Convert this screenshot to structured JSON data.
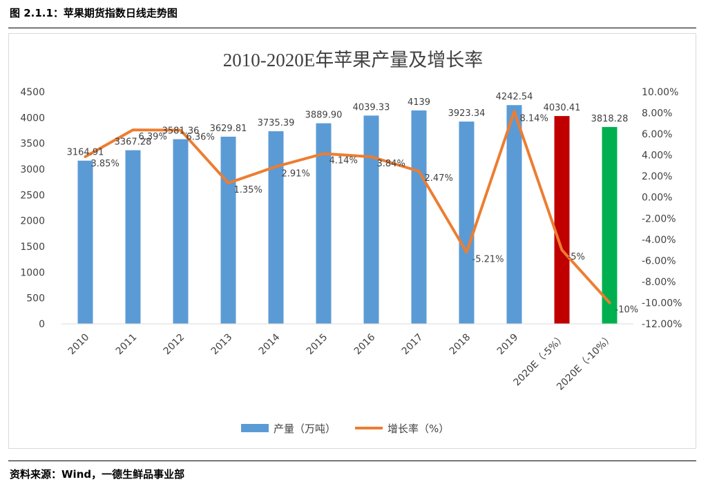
{
  "figure": {
    "title": "图 2.1.1：苹果期货指数日线走势图",
    "source": "资料来源：Wind，一德生鲜品事业部"
  },
  "chart_data": {
    "type": "bar+line",
    "title": "2010-2020E年苹果产量及增长率",
    "categories": [
      "2010",
      "2011",
      "2012",
      "2013",
      "2014",
      "2015",
      "2016",
      "2017",
      "2018",
      "2019",
      "2020E（-5%）",
      "2020E（-10%）"
    ],
    "series": [
      {
        "name": "产量（万吨）",
        "kind": "bar",
        "axis": "left",
        "values": [
          3164.91,
          3367.28,
          3581.36,
          3629.81,
          3735.39,
          3889.9,
          4039.33,
          4139,
          3923.34,
          4242.54,
          4030.41,
          3818.28
        ],
        "labels": [
          "3164.91",
          "3367.28",
          "3581.36",
          "3629.81",
          "3735.39",
          "3889.90",
          "4039.33",
          "4139",
          "3923.34",
          "4242.54",
          "4030.41",
          "3818.28"
        ],
        "colors": [
          "#5b9bd5",
          "#5b9bd5",
          "#5b9bd5",
          "#5b9bd5",
          "#5b9bd5",
          "#5b9bd5",
          "#5b9bd5",
          "#5b9bd5",
          "#5b9bd5",
          "#5b9bd5",
          "#c00000",
          "#00b050"
        ]
      },
      {
        "name": "增长率（%）",
        "kind": "line",
        "axis": "right",
        "color": "#ed7d31",
        "values": [
          3.85,
          6.39,
          6.36,
          1.35,
          2.91,
          4.14,
          3.84,
          2.47,
          -5.21,
          8.14,
          -5,
          -10
        ],
        "labels": [
          "3.85%",
          "6.39%",
          "6.36%",
          "1.35%",
          "2.91%",
          "4.14%",
          "3.84%",
          "2.47%",
          "-5.21%",
          "8.14%",
          "-5%",
          "-10%"
        ]
      }
    ],
    "y_left": {
      "range": [
        0,
        4500
      ],
      "ticks": [
        0,
        500,
        1000,
        1500,
        2000,
        2500,
        3000,
        3500,
        4000,
        4500
      ],
      "tick_labels": [
        "0",
        "500",
        "1000",
        "1500",
        "2000",
        "2500",
        "3000",
        "3500",
        "4000",
        "4500"
      ]
    },
    "y_right": {
      "range": [
        -12,
        10
      ],
      "ticks": [
        -12,
        -10,
        -8,
        -6,
        -4,
        -2,
        0,
        2,
        4,
        6,
        8,
        10
      ],
      "tick_labels": [
        "-12.00%",
        "-10.00%",
        "-8.00%",
        "-6.00%",
        "-4.00%",
        "-2.00%",
        "0.00%",
        "2.00%",
        "4.00%",
        "6.00%",
        "8.00%",
        "10.00%"
      ]
    },
    "grid": false,
    "legend_position": "bottom"
  }
}
